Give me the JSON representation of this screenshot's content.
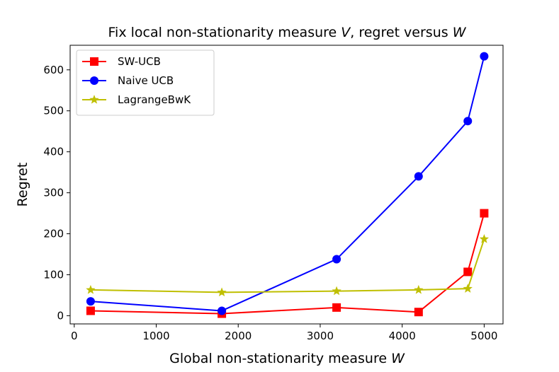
{
  "chart_data": {
    "type": "line",
    "title_main": "Fix local non-stationarity measure ",
    "title_v": "V",
    "title_mid": ", regret versus ",
    "title_w": "W",
    "xlabel_main": "Global non-stationarity measure ",
    "xlabel_w": "W",
    "ylabel": "Regret",
    "xlim": [
      -50,
      5230
    ],
    "ylim": [
      -20,
      660
    ],
    "xticks": [
      0,
      1000,
      2000,
      3000,
      4000,
      5000
    ],
    "yticks": [
      0,
      100,
      200,
      300,
      400,
      500,
      600
    ],
    "grid": false,
    "legend_position": "top-left",
    "x": [
      200,
      1800,
      3200,
      4200,
      4800,
      5000
    ],
    "series": [
      {
        "name": "SW-UCB",
        "color": "#ff0000",
        "marker": "square",
        "values": [
          12,
          5,
          20,
          9,
          107,
          250
        ]
      },
      {
        "name": "Naive UCB",
        "color": "#0000ff",
        "marker": "circle",
        "values": [
          35,
          12,
          138,
          340,
          475,
          633
        ]
      },
      {
        "name": "LagrangeBwK",
        "color": "#bfbf00",
        "marker": "star",
        "values": [
          63,
          57,
          60,
          63,
          66,
          187
        ]
      }
    ]
  }
}
